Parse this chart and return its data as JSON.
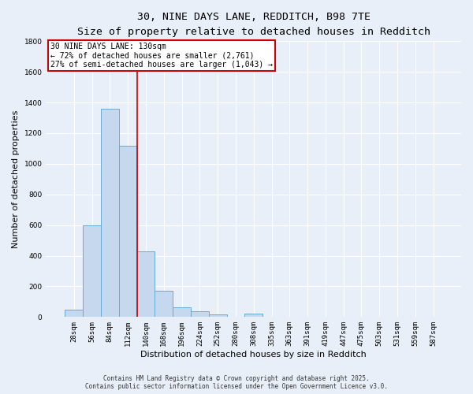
{
  "title_line1": "30, NINE DAYS LANE, REDDITCH, B98 7TE",
  "title_line2": "Size of property relative to detached houses in Redditch",
  "xlabel": "Distribution of detached houses by size in Redditch",
  "ylabel": "Number of detached properties",
  "bar_color": "#c5d8ee",
  "bar_edge_color": "#6aaad4",
  "background_color": "#e8eff8",
  "grid_color": "#ffffff",
  "categories": [
    "28sqm",
    "56sqm",
    "84sqm",
    "112sqm",
    "140sqm",
    "168sqm",
    "196sqm",
    "224sqm",
    "252sqm",
    "280sqm",
    "308sqm",
    "335sqm",
    "363sqm",
    "391sqm",
    "419sqm",
    "447sqm",
    "475sqm",
    "503sqm",
    "531sqm",
    "559sqm",
    "587sqm"
  ],
  "values": [
    50,
    600,
    1360,
    1120,
    430,
    170,
    65,
    40,
    15,
    0,
    20,
    0,
    0,
    0,
    0,
    0,
    0,
    0,
    0,
    0,
    0
  ],
  "ylim": [
    0,
    1800
  ],
  "yticks": [
    0,
    200,
    400,
    600,
    800,
    1000,
    1200,
    1400,
    1600,
    1800
  ],
  "property_line_x": 3.5,
  "annotation_title": "30 NINE DAYS LANE: 130sqm",
  "annotation_line1": "← 72% of detached houses are smaller (2,761)",
  "annotation_line2": "27% of semi-detached houses are larger (1,043) →",
  "annotation_box_color": "#ffffff",
  "annotation_box_edge": "#cc0000",
  "property_line_color": "#cc0000",
  "footer_line1": "Contains HM Land Registry data © Crown copyright and database right 2025.",
  "footer_line2": "Contains public sector information licensed under the Open Government Licence v3.0.",
  "title_fontsize": 9.5,
  "subtitle_fontsize": 8.5,
  "tick_fontsize": 6.5,
  "ylabel_fontsize": 8,
  "xlabel_fontsize": 8,
  "annotation_fontsize": 7,
  "footer_fontsize": 5.5
}
